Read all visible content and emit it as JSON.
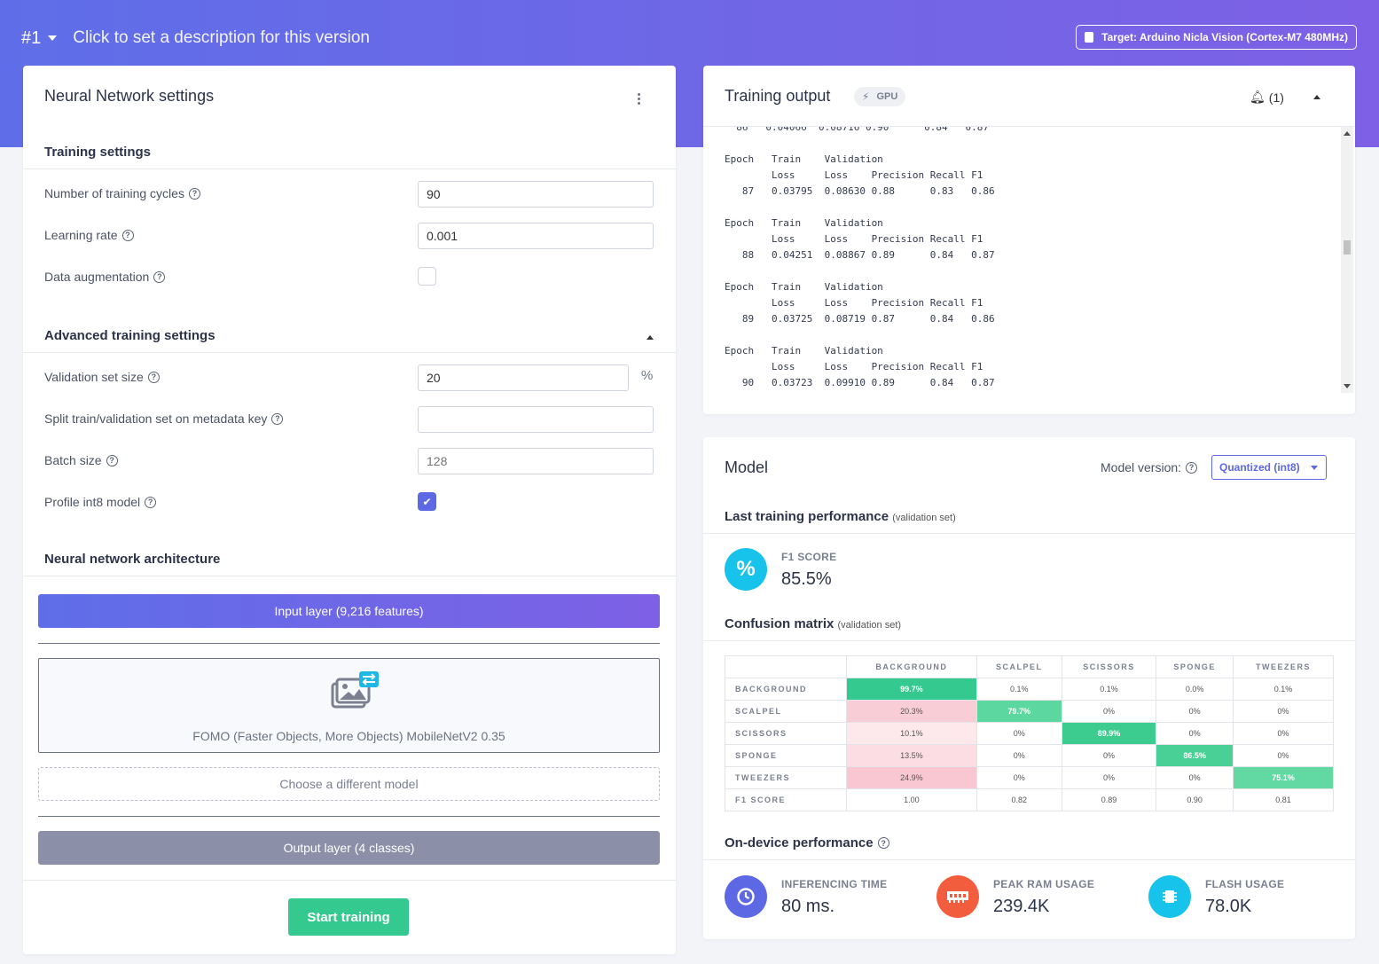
{
  "topbar": {
    "version": "#1",
    "description_placeholder": "Click to set a description for this version",
    "target": "Target: Arduino Nicla Vision (Cortex-M7 480MHz)"
  },
  "nn_settings": {
    "title": "Neural Network settings",
    "training_settings": {
      "heading": "Training settings",
      "cycles_label": "Number of training cycles",
      "cycles_value": "90",
      "lr_label": "Learning rate",
      "lr_value": "0.001",
      "augmentation_label": "Data augmentation",
      "augmentation_checked": false
    },
    "advanced": {
      "heading": "Advanced training settings",
      "val_label": "Validation set size",
      "val_value": "20",
      "val_unit": "%",
      "split_label": "Split train/validation set on metadata key",
      "split_value": "",
      "batch_label": "Batch size",
      "batch_placeholder": "128",
      "profile_label": "Profile int8 model",
      "profile_checked": true
    },
    "architecture": {
      "heading": "Neural network architecture",
      "input_layer": "Input layer (9,216 features)",
      "model_name": "FOMO (Faster Objects, More Objects) MobileNetV2 0.35",
      "choose_model": "Choose a different model",
      "output_layer": "Output layer (4 classes)"
    },
    "start_button": "Start training"
  },
  "training_output": {
    "title": "Training output",
    "gpu_badge": "GPU",
    "notifications": "(1)",
    "log": "  86   0.04066  0.08716 0.90      0.84   0.87\n\nEpoch   Train    Validation\n        Loss     Loss    Precision Recall F1\n   87   0.03795  0.08630 0.88      0.83   0.86\n\nEpoch   Train    Validation\n        Loss     Loss    Precision Recall F1\n   88   0.04251  0.08867 0.89      0.84   0.87\n\nEpoch   Train    Validation\n        Loss     Loss    Precision Recall F1\n   89   0.03725  0.08719 0.87      0.84   0.86\n\nEpoch   Train    Validation\n        Loss     Loss    Precision Recall F1\n   90   0.03723  0.09910 0.89      0.84   0.87"
  },
  "model": {
    "title": "Model",
    "version_label": "Model version:",
    "version_value": "Quantized (int8)",
    "last_perf_heading": "Last training performance",
    "last_perf_note": "(validation set)",
    "f1_label": "F1 SCORE",
    "f1_value": "85.5%",
    "cm_heading": "Confusion matrix",
    "cm_note": "(validation set)",
    "confusion_matrix": {
      "columns": [
        "BACKGROUND",
        "SCALPEL",
        "SCISSORS",
        "SPONGE",
        "TWEEZERS"
      ],
      "rows": [
        {
          "label": "BACKGROUND",
          "values": [
            "99.7%",
            "0.1%",
            "0.1%",
            "0.0%",
            "0.1%"
          ]
        },
        {
          "label": "SCALPEL",
          "values": [
            "20.3%",
            "79.7%",
            "0%",
            "0%",
            "0%"
          ]
        },
        {
          "label": "SCISSORS",
          "values": [
            "10.1%",
            "0%",
            "89.9%",
            "0%",
            "0%"
          ]
        },
        {
          "label": "SPONGE",
          "values": [
            "13.5%",
            "0%",
            "0%",
            "86.5%",
            "0%"
          ]
        },
        {
          "label": "TWEEZERS",
          "values": [
            "24.9%",
            "0%",
            "0%",
            "0%",
            "75.1%"
          ]
        }
      ],
      "f1_row": {
        "label": "F1 SCORE",
        "values": [
          "1.00",
          "0.82",
          "0.89",
          "0.90",
          "0.81"
        ]
      }
    },
    "on_device_heading": "On-device performance",
    "inferencing_label": "INFERENCING TIME",
    "inferencing_value": "80 ms.",
    "ram_label": "PEAK RAM USAGE",
    "ram_value": "239.4K",
    "flash_label": "FLASH USAGE",
    "flash_value": "78.0K"
  },
  "colors": {
    "accent": "#5d68e4",
    "success": "#34c98e",
    "cm_diag_strong": "#34c98e",
    "cm_diag": "#5cd79f",
    "cm_bg_high": "#f9cdd6",
    "cm_bg_low": "#fde8ec"
  }
}
